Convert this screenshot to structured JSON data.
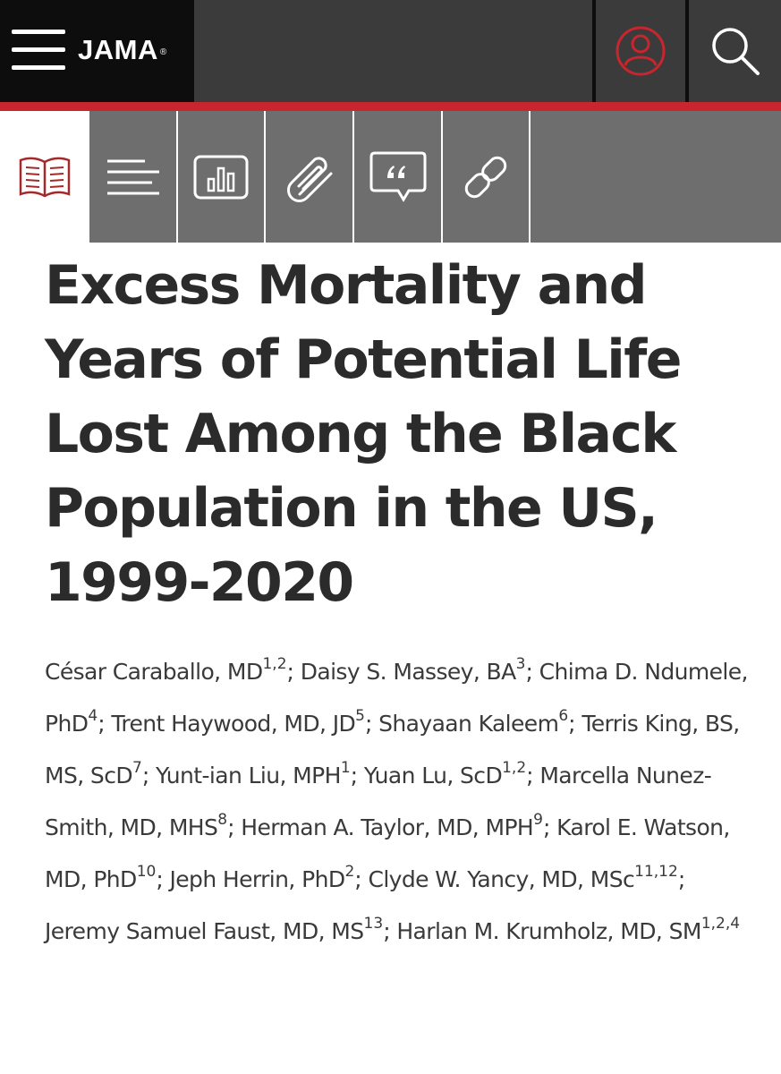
{
  "header": {
    "logo_text": "JAMA",
    "logo_mark": "®",
    "menu_icon": "hamburger-menu-icon",
    "account_icon": "user-account-icon",
    "search_icon": "search-icon"
  },
  "colors": {
    "accent": "#c8262e",
    "topbar_dark": "#0d0d0d",
    "topbar_gray": "#3b3b3b",
    "tabs_gray": "#6e6e6e",
    "text": "#2b2b2b"
  },
  "tabs": [
    {
      "icon": "open-book-icon",
      "active": true
    },
    {
      "icon": "text-lines-icon",
      "active": false
    },
    {
      "icon": "bar-chart-icon",
      "active": false
    },
    {
      "icon": "paperclip-icon",
      "active": false
    },
    {
      "icon": "quote-bubble-icon",
      "active": false
    },
    {
      "icon": "link-icon",
      "active": false
    }
  ],
  "article": {
    "title": "Excess Mortality and Years of Potential Life Lost Among the Black Population in the US, 1999-2020",
    "authors": [
      {
        "name": "César Caraballo, MD",
        "aff": "1,2"
      },
      {
        "name": "Daisy S. Massey, BA",
        "aff": "3"
      },
      {
        "name": "Chima D. Ndumele, PhD",
        "aff": "4"
      },
      {
        "name": "Trent Haywood, MD, JD",
        "aff": "5"
      },
      {
        "name": "Shayaan Kaleem",
        "aff": "6"
      },
      {
        "name": "Terris King, BS, MS, ScD",
        "aff": "7"
      },
      {
        "name": "Yunt-ian Liu, MPH",
        "aff": "1"
      },
      {
        "name": "Yuan Lu, ScD",
        "aff": "1,2"
      },
      {
        "name": "Marcella Nunez-Smith, MD, MHS",
        "aff": "8"
      },
      {
        "name": "Herman A. Taylor, MD, MPH",
        "aff": "9"
      },
      {
        "name": "Karol E. Watson, MD, PhD",
        "aff": "10"
      },
      {
        "name": "Jeph Herrin, PhD",
        "aff": "2"
      },
      {
        "name": "Clyde W. Yancy, MD, MSc",
        "aff": "11,12"
      },
      {
        "name": "Jeremy Samuel Faust, MD, MS",
        "aff": "13"
      },
      {
        "name": "Harlan M. Krumholz, MD, SM",
        "aff": "1,2,4"
      }
    ],
    "author_separator": "; "
  }
}
